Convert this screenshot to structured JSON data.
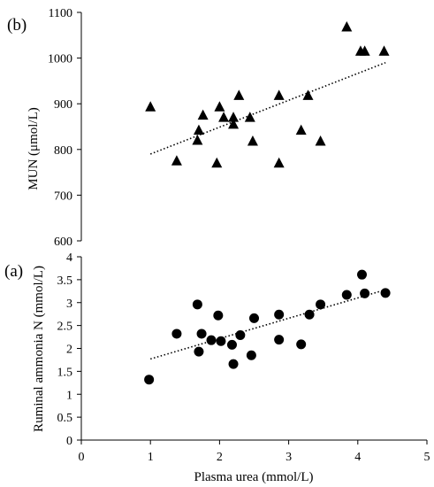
{
  "colors": {
    "markers": "#000000",
    "axes": "#000000",
    "trendline": "#000000",
    "background": "#ffffff"
  },
  "chart_data": [
    {
      "panel_label": "(b)",
      "type": "scatter",
      "marker": "triangle",
      "trendline": "linear, dotted",
      "title": "",
      "xlabel": "",
      "ylabel": "MUN (μmol/L)",
      "xlim": [
        1,
        4.4
      ],
      "ylim": [
        600,
        1100
      ],
      "yticks": [
        "600",
        "700",
        "800",
        "900",
        "1000",
        "1100"
      ],
      "grid": false,
      "legend": "none",
      "trend": {
        "x": [
          1,
          4.4
        ],
        "y": [
          790,
          990
        ]
      },
      "points": [
        {
          "x": 1.0,
          "y": 893
        },
        {
          "x": 1.38,
          "y": 775
        },
        {
          "x": 1.68,
          "y": 820
        },
        {
          "x": 1.7,
          "y": 842
        },
        {
          "x": 1.76,
          "y": 875
        },
        {
          "x": 1.96,
          "y": 770
        },
        {
          "x": 2.0,
          "y": 893
        },
        {
          "x": 2.06,
          "y": 870
        },
        {
          "x": 2.2,
          "y": 855
        },
        {
          "x": 2.2,
          "y": 870
        },
        {
          "x": 2.28,
          "y": 918
        },
        {
          "x": 2.44,
          "y": 870
        },
        {
          "x": 2.48,
          "y": 818
        },
        {
          "x": 2.86,
          "y": 918
        },
        {
          "x": 2.86,
          "y": 770
        },
        {
          "x": 3.18,
          "y": 842
        },
        {
          "x": 3.28,
          "y": 918
        },
        {
          "x": 3.46,
          "y": 818
        },
        {
          "x": 3.84,
          "y": 1068
        },
        {
          "x": 4.04,
          "y": 1015
        },
        {
          "x": 4.1,
          "y": 1015
        },
        {
          "x": 4.38,
          "y": 1015
        }
      ]
    },
    {
      "panel_label": "(a)",
      "type": "scatter",
      "marker": "circle",
      "trendline": "linear, dotted",
      "title": "",
      "xlabel": "Plasma urea (mmol/L)",
      "ylabel": "Ruminal ammonia N (mmol/L)",
      "xlim": [
        0,
        5
      ],
      "ylim": [
        0,
        4
      ],
      "xticks": [
        "0",
        "1",
        "2",
        "3",
        "4",
        "5"
      ],
      "yticks": [
        "0",
        "0.5",
        "1",
        "1.5",
        "2",
        "2.5",
        "3",
        "3.5",
        "4"
      ],
      "grid": false,
      "legend": "none",
      "trend": {
        "x": [
          1,
          4.4
        ],
        "y": [
          1.77,
          3.28
        ]
      },
      "points": [
        {
          "x": 0.98,
          "y": 1.32
        },
        {
          "x": 1.38,
          "y": 2.32
        },
        {
          "x": 1.68,
          "y": 2.96
        },
        {
          "x": 1.7,
          "y": 1.93
        },
        {
          "x": 1.74,
          "y": 2.32
        },
        {
          "x": 1.88,
          "y": 2.18
        },
        {
          "x": 1.98,
          "y": 2.72
        },
        {
          "x": 2.02,
          "y": 2.16
        },
        {
          "x": 2.18,
          "y": 2.08
        },
        {
          "x": 2.2,
          "y": 1.66
        },
        {
          "x": 2.3,
          "y": 2.29
        },
        {
          "x": 2.46,
          "y": 1.85
        },
        {
          "x": 2.5,
          "y": 2.66
        },
        {
          "x": 2.86,
          "y": 2.74
        },
        {
          "x": 2.86,
          "y": 2.19
        },
        {
          "x": 3.18,
          "y": 2.09
        },
        {
          "x": 3.3,
          "y": 2.74
        },
        {
          "x": 3.46,
          "y": 2.96
        },
        {
          "x": 3.84,
          "y": 3.17
        },
        {
          "x": 4.06,
          "y": 3.61
        },
        {
          "x": 4.1,
          "y": 3.2
        },
        {
          "x": 4.4,
          "y": 3.21
        }
      ]
    }
  ]
}
